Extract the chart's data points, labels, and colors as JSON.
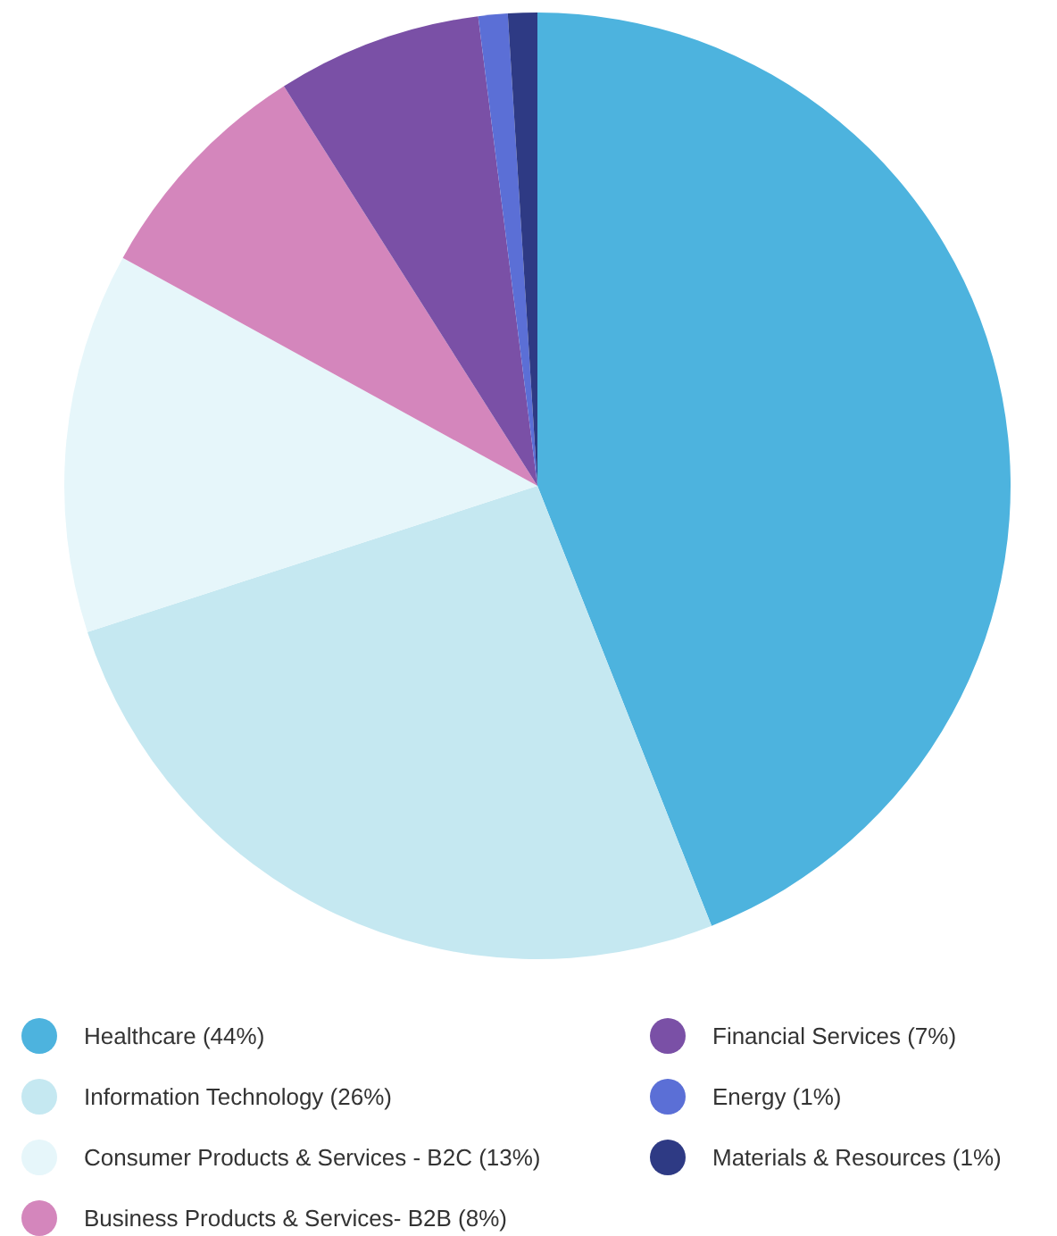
{
  "chart_data": {
    "type": "pie",
    "categories": [
      "Healthcare (44%)",
      "Information Technology (26%)",
      "Consumer Products & Services - B2C (13%)",
      "Business Products & Services- B2B (8%)",
      "Financial Services (7%)",
      "Energy (1%)",
      "Materials & Resources (1%)"
    ],
    "values": [
      44,
      26,
      13,
      8,
      7,
      1,
      1
    ],
    "colors": [
      "#4db3de",
      "#c5e8f1",
      "#e6f6fa",
      "#d486bc",
      "#7a50a6",
      "#5b6fd6",
      "#2e3a84"
    ],
    "legend": "bottom"
  }
}
